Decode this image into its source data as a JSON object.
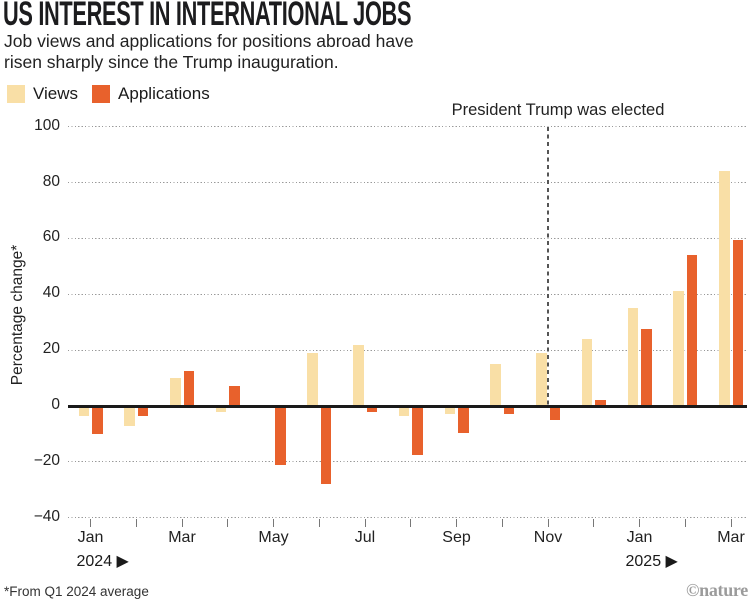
{
  "header": {
    "title": "US INTEREST IN INTERNATIONAL JOBS",
    "subtitle_lines": [
      "Job views and applications for positions abroad have",
      "risen sharply since the Trump inauguration."
    ]
  },
  "legend": {
    "items": [
      {
        "label": "Views",
        "color": "#F9DFA6"
      },
      {
        "label": "Applications",
        "color": "#E8612C"
      }
    ]
  },
  "footnote": "*From Q1 2024 average",
  "credit": "©nature",
  "chart_data": {
    "type": "bar",
    "title": "US INTEREST IN INTERNATIONAL JOBS",
    "xlabel": "",
    "ylabel": "Percentage change*",
    "ylim": [
      -40,
      100
    ],
    "yticks": [
      100,
      80,
      60,
      40,
      20,
      0,
      -20,
      -40
    ],
    "grid": "dotted-horizontal",
    "legend_position": "top-left",
    "categories": [
      "Jan 2024",
      "Feb 2024",
      "Mar 2024",
      "Apr 2024",
      "May 2024",
      "Jun 2024",
      "Jul 2024",
      "Aug 2024",
      "Sep 2024",
      "Oct 2024",
      "Nov 2024",
      "Dec 2024",
      "Jan 2025",
      "Feb 2025",
      "Mar 2025"
    ],
    "x_tick_label_indices": [
      0,
      2,
      4,
      6,
      8,
      10,
      12,
      14
    ],
    "x_tick_labels_shown": [
      "Jan",
      "Mar",
      "May",
      "Jul",
      "Sep",
      "Nov",
      "Jan",
      "Mar"
    ],
    "year_markers": [
      {
        "index": 0,
        "label": "2024 ▶"
      },
      {
        "index": 12,
        "label": "2025 ▶"
      }
    ],
    "series": [
      {
        "name": "Views",
        "color": "#F9DFA6",
        "values": [
          -3.5,
          -7,
          10,
          -2,
          0,
          19,
          22,
          -3.5,
          -3,
          15,
          19,
          24,
          35,
          41,
          84
        ]
      },
      {
        "name": "Applications",
        "color": "#E8612C",
        "values": [
          -10,
          -3.5,
          12.5,
          7,
          -21,
          -28,
          -2,
          -17.5,
          -9.5,
          -3,
          -5,
          2,
          27.5,
          54,
          59.5
        ]
      }
    ],
    "annotation": {
      "label": "President Trump was elected",
      "x_category": "Nov 2024"
    }
  }
}
